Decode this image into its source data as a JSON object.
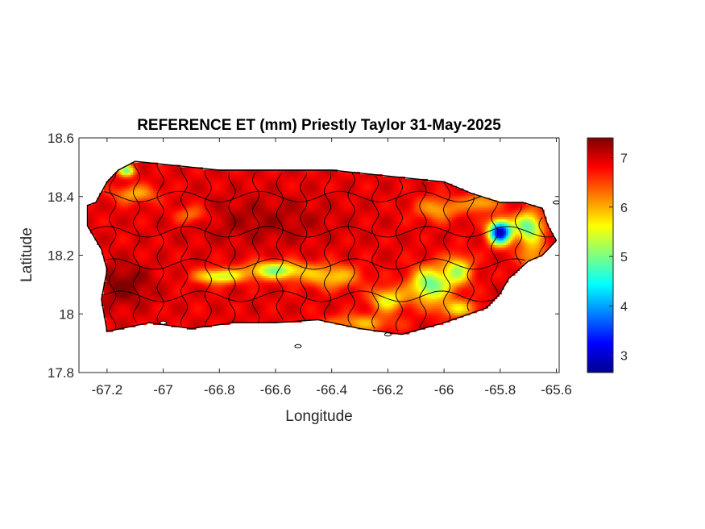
{
  "figure": {
    "title": "REFERENCE ET (mm) Priestly Taylor 31-May-2025",
    "x_axis": {
      "label": "Longitude",
      "range": [
        -67.3,
        -65.59
      ],
      "ticks": [
        "-67.2",
        "-67",
        "-66.8",
        "-66.6",
        "-66.4",
        "-66.2",
        "-66",
        "-65.8",
        "-65.6"
      ]
    },
    "y_axis": {
      "label": "Latitude",
      "range": [
        17.8,
        18.6
      ],
      "ticks": [
        "18.6",
        "18.4",
        "18.2",
        "18"
      ]
    },
    "colorbar": {
      "colormap": "jet",
      "range": [
        2.65,
        7.4
      ],
      "ticks": [
        "7",
        "6",
        "5",
        "4",
        "3"
      ]
    }
  },
  "chart_data": {
    "type": "heatmap",
    "title": "REFERENCE ET (mm) Priestly Taylor 31-May-2025",
    "xlabel": "Longitude",
    "ylabel": "Latitude",
    "xlim": [
      -67.3,
      -65.59
    ],
    "ylim": [
      17.8,
      18.6
    ],
    "colorbar_range": [
      2.65,
      7.4
    ],
    "colorbar_ticks": [
      7,
      6,
      5,
      4,
      3
    ],
    "colormap": "jet",
    "grid": false,
    "island_outline": [
      [
        -67.27,
        18.37
      ],
      [
        -67.24,
        18.38
      ],
      [
        -67.2,
        18.45
      ],
      [
        -67.16,
        18.49
      ],
      [
        -67.1,
        18.52
      ],
      [
        -67.0,
        18.51
      ],
      [
        -66.8,
        18.49
      ],
      [
        -66.6,
        18.49
      ],
      [
        -66.4,
        18.49
      ],
      [
        -66.2,
        18.47
      ],
      [
        -66.0,
        18.45
      ],
      [
        -65.9,
        18.41
      ],
      [
        -65.8,
        18.38
      ],
      [
        -65.72,
        18.38
      ],
      [
        -65.65,
        18.36
      ],
      [
        -65.63,
        18.3
      ],
      [
        -65.6,
        18.25
      ],
      [
        -65.65,
        18.2
      ],
      [
        -65.7,
        18.18
      ],
      [
        -65.77,
        18.12
      ],
      [
        -65.8,
        18.07
      ],
      [
        -65.85,
        18.02
      ],
      [
        -66.0,
        17.97
      ],
      [
        -66.15,
        17.93
      ],
      [
        -66.3,
        17.95
      ],
      [
        -66.45,
        17.98
      ],
      [
        -66.6,
        17.97
      ],
      [
        -66.75,
        17.97
      ],
      [
        -66.9,
        17.95
      ],
      [
        -67.05,
        17.97
      ],
      [
        -67.2,
        17.94
      ],
      [
        -67.22,
        18.05
      ],
      [
        -67.2,
        18.15
      ],
      [
        -67.22,
        18.22
      ],
      [
        -67.27,
        18.3
      ]
    ],
    "value_field": {
      "base": 6.9,
      "features": [
        {
          "lon": -67.14,
          "lat": 18.1,
          "sx": 0.1,
          "sy": 0.07,
          "delta": 0.5
        },
        {
          "lon": -66.65,
          "lat": 18.32,
          "sx": 0.25,
          "sy": 0.08,
          "delta": 0.3
        },
        {
          "lon": -67.13,
          "lat": 18.49,
          "sx": 0.03,
          "sy": 0.02,
          "delta": -1.8
        },
        {
          "lon": -67.1,
          "lat": 18.41,
          "sx": 0.08,
          "sy": 0.03,
          "delta": -0.9
        },
        {
          "lon": -66.9,
          "lat": 18.34,
          "sx": 0.06,
          "sy": 0.03,
          "delta": -0.7
        },
        {
          "lon": -66.8,
          "lat": 18.13,
          "sx": 0.08,
          "sy": 0.025,
          "delta": -1.6
        },
        {
          "lon": -66.6,
          "lat": 18.15,
          "sx": 0.1,
          "sy": 0.03,
          "delta": -1.8
        },
        {
          "lon": -66.4,
          "lat": 18.13,
          "sx": 0.1,
          "sy": 0.04,
          "delta": -1.1
        },
        {
          "lon": -66.2,
          "lat": 18.05,
          "sx": 0.06,
          "sy": 0.04,
          "delta": -1.4
        },
        {
          "lon": -66.05,
          "lat": 18.1,
          "sx": 0.07,
          "sy": 0.06,
          "delta": -2.0
        },
        {
          "lon": -65.95,
          "lat": 18.15,
          "sx": 0.05,
          "sy": 0.05,
          "delta": -1.5
        },
        {
          "lon": -66.02,
          "lat": 18.36,
          "sx": 0.08,
          "sy": 0.04,
          "delta": -0.9
        },
        {
          "lon": -65.87,
          "lat": 18.38,
          "sx": 0.06,
          "sy": 0.03,
          "delta": -1.0
        },
        {
          "lon": -65.8,
          "lat": 18.28,
          "sx": 0.04,
          "sy": 0.04,
          "delta": -4.0
        },
        {
          "lon": -65.7,
          "lat": 18.3,
          "sx": 0.05,
          "sy": 0.05,
          "delta": -2.0
        },
        {
          "lon": -65.68,
          "lat": 18.2,
          "sx": 0.05,
          "sy": 0.06,
          "delta": -0.9
        },
        {
          "lon": -65.95,
          "lat": 18.02,
          "sx": 0.07,
          "sy": 0.03,
          "delta": -1.1
        },
        {
          "lon": -66.3,
          "lat": 17.97,
          "sx": 0.12,
          "sy": 0.03,
          "delta": -0.9
        }
      ]
    }
  }
}
